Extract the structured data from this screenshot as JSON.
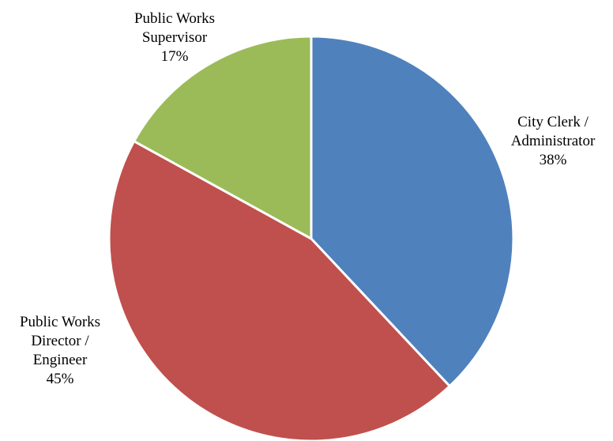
{
  "chart_data": {
    "type": "pie",
    "title": "",
    "start_angle_deg": 0,
    "direction": "clockwise",
    "slices": [
      {
        "label_lines": [
          "City Clerk /",
          "Administrator"
        ],
        "value": 38,
        "value_label": "38%",
        "color": "#4F81BD"
      },
      {
        "label_lines": [
          "Public Works",
          "Director /",
          "Engineer"
        ],
        "value": 45,
        "value_label": "45%",
        "color": "#C0504D"
      },
      {
        "label_lines": [
          "Public Works",
          "Supervisor"
        ],
        "value": 17,
        "value_label": "17%",
        "color": "#9BBB59"
      }
    ]
  }
}
